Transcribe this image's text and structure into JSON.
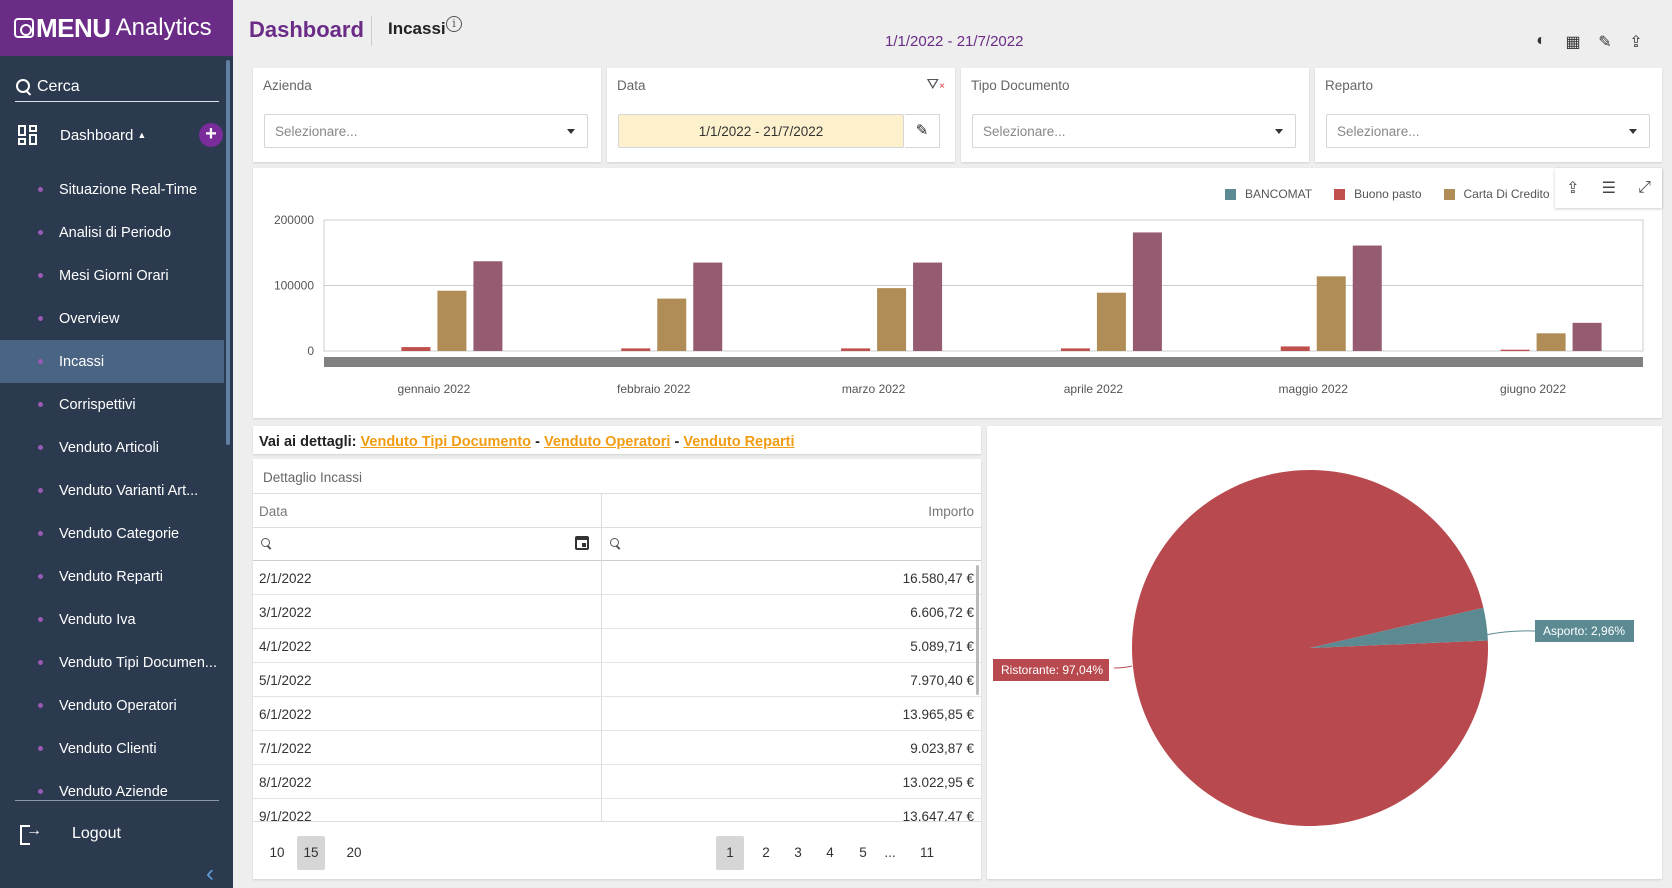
{
  "app": {
    "brand_bold": "MENU",
    "brand_light": "Analytics"
  },
  "sidebar": {
    "search_label": "Cerca",
    "section_label": "Dashboard",
    "items": [
      {
        "label": "Situazione Real-Time"
      },
      {
        "label": "Analisi di Periodo"
      },
      {
        "label": "Mesi Giorni Orari"
      },
      {
        "label": "Overview"
      },
      {
        "label": "Incassi",
        "active": true
      },
      {
        "label": "Corrispettivi"
      },
      {
        "label": "Venduto Articoli"
      },
      {
        "label": "Venduto Varianti Art..."
      },
      {
        "label": "Venduto Categorie"
      },
      {
        "label": "Venduto Reparti"
      },
      {
        "label": "Venduto Iva"
      },
      {
        "label": "Venduto Tipi Documen..."
      },
      {
        "label": "Venduto Operatori"
      },
      {
        "label": "Venduto Clienti"
      },
      {
        "label": "Venduto Aziende"
      }
    ],
    "logout_label": "Logout"
  },
  "header": {
    "title": "Dashboard",
    "subtitle": "Incassi",
    "date_range": "1/1/2022 - 21/7/2022"
  },
  "filters": {
    "azienda": {
      "label": "Azienda",
      "placeholder": "Selezionare..."
    },
    "data": {
      "label": "Data",
      "value": "1/1/2022 - 21/7/2022"
    },
    "tipo_documento": {
      "label": "Tipo Documento",
      "placeholder": "Selezionare..."
    },
    "reparto": {
      "label": "Reparto",
      "placeholder": "Selezionare..."
    }
  },
  "chart_data": [
    {
      "type": "bar",
      "categories": [
        "gennaio 2022",
        "febbraio 2022",
        "marzo 2022",
        "aprile 2022",
        "maggio 2022",
        "giugno 2022"
      ],
      "series": [
        {
          "name": "BANCOMAT",
          "color": "#5b8a93",
          "values": [
            0,
            0,
            0,
            0,
            0,
            0
          ]
        },
        {
          "name": "Buono pasto",
          "color": "#c0504d",
          "values": [
            6000,
            4000,
            4000,
            4000,
            7000,
            2000
          ]
        },
        {
          "name": "Carta Di Credito",
          "color": "#b08d57",
          "values": [
            92000,
            80000,
            96000,
            89000,
            114000,
            27000
          ]
        },
        {
          "series_extra": true,
          "color": "#955b71",
          "values": [
            137000,
            135000,
            135000,
            181000,
            161000,
            43000
          ]
        }
      ],
      "yticks": [
        "200000",
        "100000",
        "0"
      ],
      "ylim": [
        0,
        200000
      ],
      "legend_position": "top-right"
    },
    {
      "type": "pie",
      "slices": [
        {
          "label": "Ristorante: 97,04%",
          "value": 97.04,
          "color": "#b84a4f"
        },
        {
          "label": "Asporto: 2,96%",
          "value": 2.96,
          "color": "#5b8a93"
        }
      ]
    }
  ],
  "details": {
    "prefix": "Vai ai dettagli:",
    "links": [
      "Venduto Tipi Documento",
      "Venduto Operatori",
      "Venduto Reparti"
    ],
    "separator": "-"
  },
  "table": {
    "title": "Dettaglio Incassi",
    "columns": [
      "Data",
      "Importo"
    ],
    "rows": [
      [
        "2/1/2022",
        "16.580,47 €"
      ],
      [
        "3/1/2022",
        "6.606,72 €"
      ],
      [
        "4/1/2022",
        "5.089,71 €"
      ],
      [
        "5/1/2022",
        "7.970,40 €"
      ],
      [
        "6/1/2022",
        "13.965,85 €"
      ],
      [
        "7/1/2022",
        "9.023,87 €"
      ],
      [
        "8/1/2022",
        "13.022,95 €"
      ],
      [
        "9/1/2022",
        "13.647,47 €"
      ]
    ],
    "page_sizes": [
      "10",
      "15",
      "20"
    ],
    "selected_page_size": "15",
    "pages": [
      "1",
      "2",
      "3",
      "4",
      "5",
      "...",
      "11"
    ],
    "current_page": "1"
  }
}
